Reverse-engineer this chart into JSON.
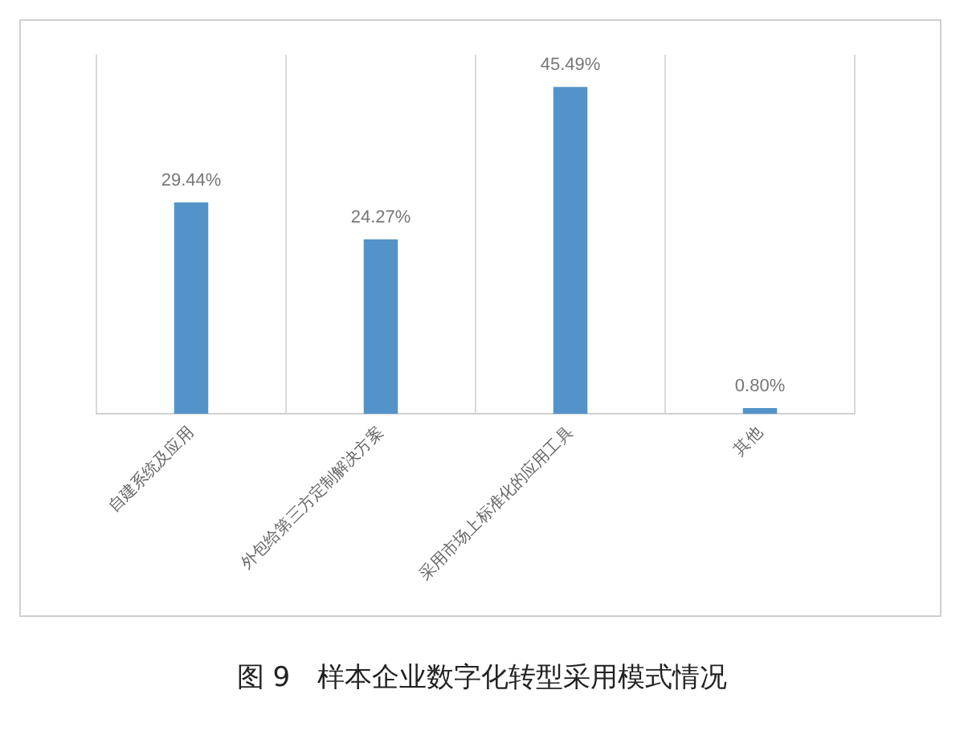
{
  "chart_data": {
    "type": "bar",
    "title": "图 9　样本企业数字化转型采用模式情况",
    "categories": [
      "自建系统及应用",
      "外包给第三方定制解决方案",
      "采用市场上标准化的应用工具",
      "其他"
    ],
    "values": [
      29.44,
      24.27,
      45.49,
      0.8
    ],
    "value_labels": [
      "29.44%",
      "24.27%",
      "45.49%",
      "0.80%"
    ],
    "color": "#5393c9",
    "grid": "x",
    "legend": false,
    "tick_labels": "x"
  }
}
